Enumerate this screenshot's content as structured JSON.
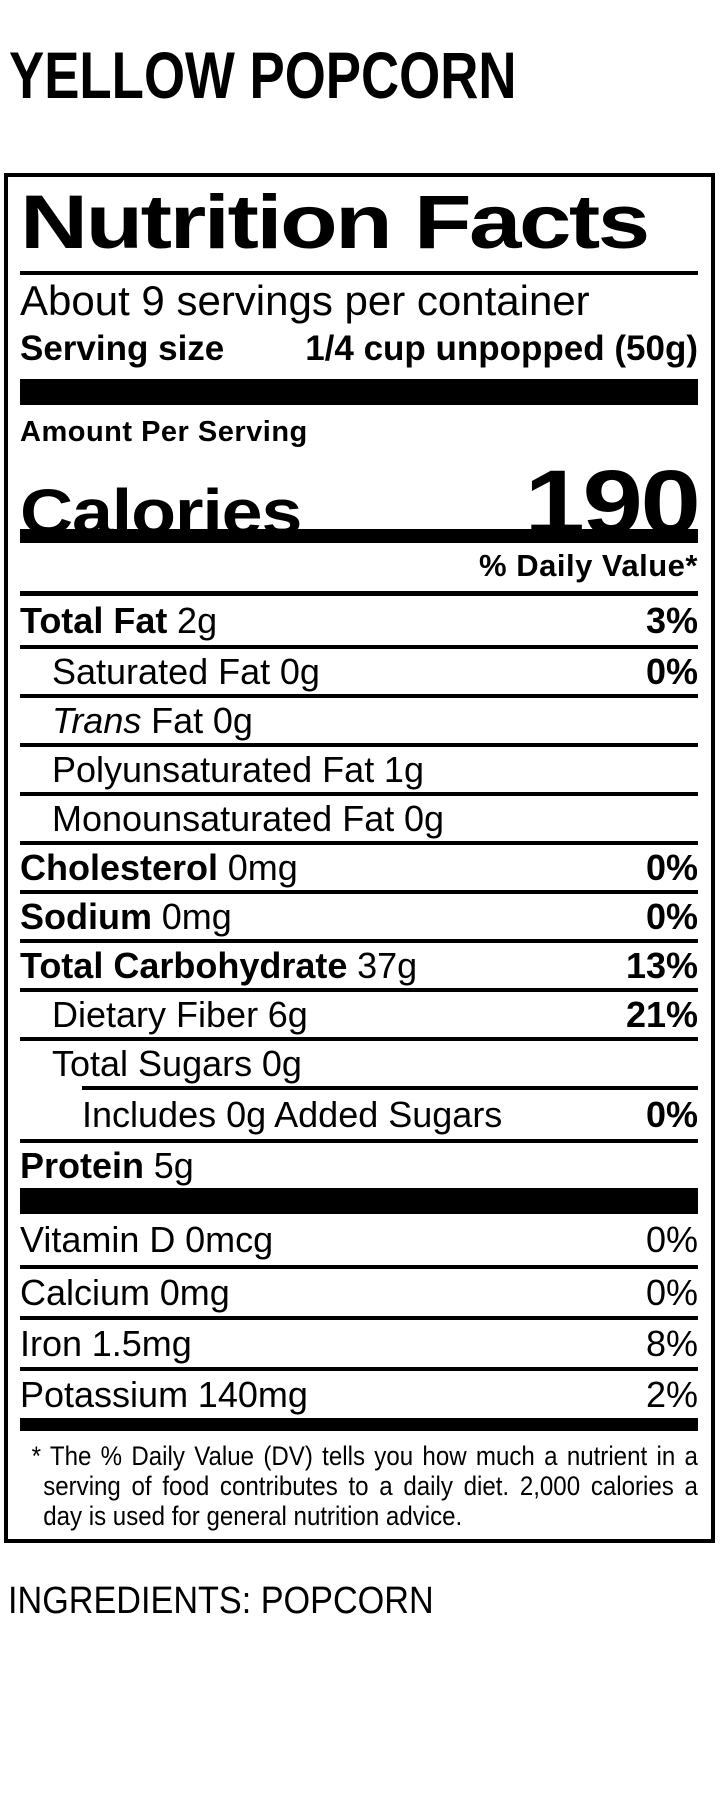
{
  "colors": {
    "ink": "#000000",
    "paper": "#ffffff"
  },
  "page": {
    "product_title": "YELLOW POPCORN",
    "ingredients": "INGREDIENTS: POPCORN"
  },
  "label": {
    "title": "Nutrition Facts",
    "servings_per_container": "About 9 servings per container",
    "serving_size_label": "Serving size",
    "serving_size_value": "1/4 cup unpopped (50g)",
    "amount_per_serving": "Amount Per Serving",
    "calories_label": "Calories",
    "calories_value": "190",
    "daily_value_header": "% Daily Value*",
    "nutrients": [
      {
        "name": "Total Fat",
        "amount": "2g",
        "dv": "3%"
      },
      {
        "name": "Saturated Fat",
        "amount": "0g",
        "dv": "0%"
      },
      {
        "name_italic": "Trans",
        "name": "Fat",
        "amount": "0g",
        "dv": ""
      },
      {
        "name": "Polyunsaturated Fat",
        "amount": "1g",
        "dv": ""
      },
      {
        "name": "Monounsaturated Fat",
        "amount": "0g",
        "dv": ""
      },
      {
        "name": "Cholesterol",
        "amount": "0mg",
        "dv": "0%"
      },
      {
        "name": "Sodium",
        "amount": "0mg",
        "dv": "0%"
      },
      {
        "name": "Total Carbohydrate",
        "amount": "37g",
        "dv": "13%"
      },
      {
        "name": "Dietary Fiber",
        "amount": "6g",
        "dv": "21%"
      },
      {
        "name": "Total Sugars",
        "amount": "0g",
        "dv": ""
      },
      {
        "name": "Includes 0g Added Sugars",
        "amount": "",
        "dv": "0%"
      },
      {
        "name": "Protein",
        "amount": "5g",
        "dv": ""
      }
    ],
    "micronutrients": [
      {
        "name": "Vitamin D",
        "amount": "0mcg",
        "dv": "0%"
      },
      {
        "name": "Calcium",
        "amount": "0mg",
        "dv": "0%"
      },
      {
        "name": "Iron",
        "amount": "1.5mg",
        "dv": "8%"
      },
      {
        "name": "Potassium",
        "amount": "140mg",
        "dv": "2%"
      }
    ],
    "footnote_marker": "*",
    "footnote": "The % Daily Value (DV) tells you how much a nutrient in a serving of food contributes to a daily diet. 2,000 calories a day is used for general nutrition advice."
  }
}
